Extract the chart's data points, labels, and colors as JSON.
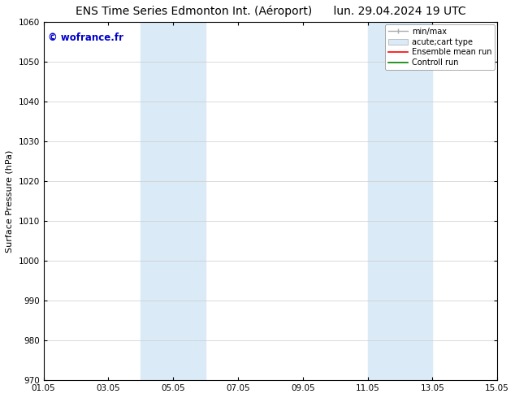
{
  "title_left": "ENS Time Series Edmonton Int. (Aéroport)",
  "title_right": "lun. 29.04.2024 19 UTC",
  "ylabel": "Surface Pressure (hPa)",
  "ylim": [
    970,
    1060
  ],
  "yticks": [
    970,
    980,
    990,
    1000,
    1010,
    1020,
    1030,
    1040,
    1050,
    1060
  ],
  "xlim_start": 0,
  "xlim_end": 14,
  "xtick_labels": [
    "01.05",
    "03.05",
    "05.05",
    "07.05",
    "09.05",
    "11.05",
    "13.05",
    "15.05"
  ],
  "xtick_positions": [
    0,
    2,
    4,
    6,
    8,
    10,
    12,
    14
  ],
  "shaded_bands": [
    {
      "x_start": 3.0,
      "x_end": 5.0,
      "color": "#daeaf7"
    },
    {
      "x_start": 10.0,
      "x_end": 12.0,
      "color": "#daeaf7"
    }
  ],
  "watermark_text": "© wofrance.fr",
  "watermark_color": "#0000cc",
  "bg_color": "#ffffff",
  "plot_bg_color": "#ffffff",
  "grid_color": "#cccccc",
  "border_color": "#000000",
  "title_fontsize": 10,
  "label_fontsize": 8,
  "tick_fontsize": 7.5
}
